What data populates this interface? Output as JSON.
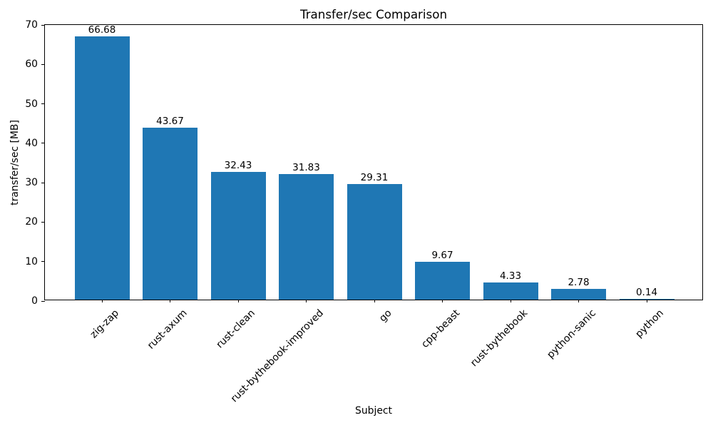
{
  "chart_data": {
    "type": "bar",
    "title": "Transfer/sec Comparison",
    "xlabel": "Subject",
    "ylabel": "transfer/sec [MB]",
    "categories": [
      "zig-zap",
      "rust-axum",
      "rust-clean",
      "rust-bythebook-improved",
      "go",
      "cpp-beast",
      "rust-bythebook",
      "python-sanic",
      "python"
    ],
    "values": [
      66.68,
      43.67,
      32.43,
      31.83,
      29.31,
      9.67,
      4.33,
      2.78,
      0.14
    ],
    "value_labels": [
      "66.68",
      "43.67",
      "32.43",
      "31.83",
      "29.31",
      "9.67",
      "4.33",
      "2.78",
      "0.14"
    ],
    "ylim": [
      0,
      70
    ],
    "yticks": [
      0,
      10,
      20,
      30,
      40,
      50,
      60,
      70
    ],
    "bar_color": "#1f77b4",
    "text_color": "#000000",
    "grid": false,
    "legend_position": "none"
  }
}
